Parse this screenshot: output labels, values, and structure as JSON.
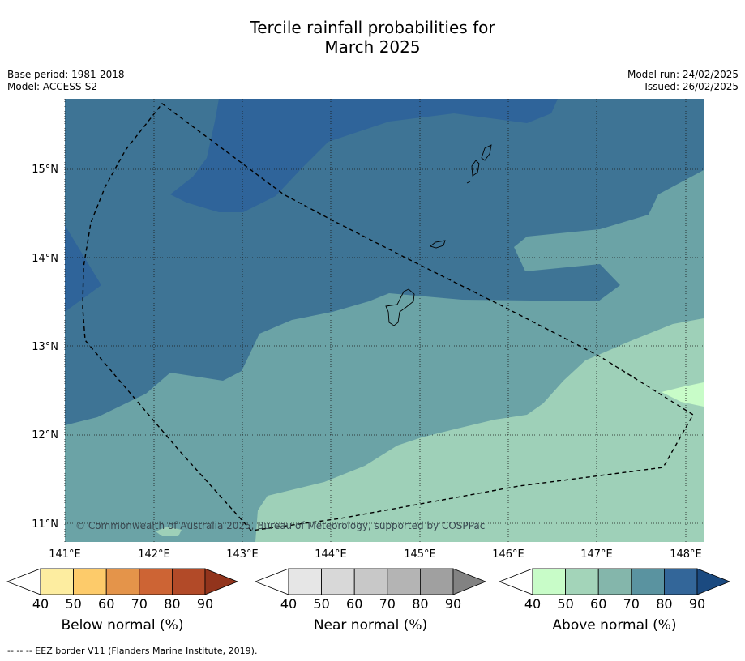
{
  "title": {
    "line1": "Tercile rainfall probabilities for",
    "line2": "March 2025"
  },
  "meta": {
    "base_period": "Base period: 1981-2018",
    "model": "Model: ACCESS-S2",
    "model_run": "Model run: 24/02/2025",
    "issued": "Issued: 26/02/2025"
  },
  "map": {
    "copyright": "© Commonwealth of Australia 2025, Bureau of Meteorology, supported by COSPPac",
    "lon_labels": [
      "141°E",
      "142°E",
      "143°E",
      "144°E",
      "145°E",
      "146°E",
      "147°E",
      "148°E"
    ],
    "lat_labels": [
      "15°N",
      "14°N",
      "13°N",
      "12°N",
      "11°N"
    ],
    "lon_range": [
      140.9,
      148.1
    ],
    "lat_range": [
      10.8,
      15.8
    ],
    "land": [
      "Guam",
      "Rota",
      "Tinian",
      "Saipan"
    ],
    "colors": {
      "above_80_90": "#2f649a",
      "above_70_80": "#3e7495",
      "above_60_70": "#6ba3a6",
      "above_50_60": "#9ed0b8",
      "above_40_50": "#c8fcc8"
    }
  },
  "colorbars": [
    {
      "id": "below",
      "label": "Below normal (%)",
      "ticks": [
        "40",
        "50",
        "60",
        "70",
        "80",
        "90"
      ],
      "colors": [
        "#ffffff",
        "#fdeda0",
        "#fdcb6a",
        "#e4944a",
        "#cd6434",
        "#b24a28",
        "#92341c"
      ]
    },
    {
      "id": "near",
      "label": "Near normal (%)",
      "ticks": [
        "40",
        "50",
        "60",
        "70",
        "80",
        "90"
      ],
      "colors": [
        "#ffffff",
        "#e6e6e6",
        "#d8d8d8",
        "#c8c8c8",
        "#b4b4b4",
        "#a0a0a0",
        "#828282"
      ]
    },
    {
      "id": "above",
      "label": "Above normal (%)",
      "ticks": [
        "40",
        "50",
        "60",
        "70",
        "80",
        "90"
      ],
      "colors": [
        "#ffffff",
        "#c8fcc8",
        "#a3d4b9",
        "#84b6ab",
        "#5a93a0",
        "#336699",
        "#1b4a80"
      ]
    }
  ],
  "footnote": "--  --  -- EEZ border V11 (Flanders Marine Institute, 2019)."
}
